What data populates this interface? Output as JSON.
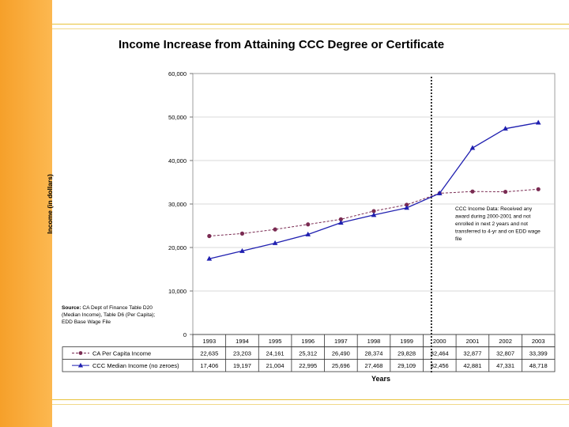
{
  "chart_data": {
    "type": "line",
    "title": "Income Increase from Attaining CCC Degree or Certificate",
    "ylabel": "Income (in dollars)",
    "xlabel": "Years",
    "ylim": [
      0,
      60000
    ],
    "y_ticks": [
      "0",
      "10,000",
      "20,000",
      "30,000",
      "40,000",
      "50,000",
      "60,000"
    ],
    "categories": [
      "1993",
      "1994",
      "1995",
      "1996",
      "1997",
      "1998",
      "1999",
      "2000",
      "2001",
      "2002",
      "2003"
    ],
    "series": [
      {
        "name": "CA Per Capita Income",
        "color": "#7a2b52",
        "style": "dashed",
        "marker": "circle",
        "values": [
          22635,
          23203,
          24161,
          25312,
          26490,
          28374,
          29828,
          32464,
          32877,
          32807,
          33399
        ],
        "labels": [
          "22,635",
          "23,203",
          "24,161",
          "25,312",
          "26,490",
          "28,374",
          "29,828",
          "32,464",
          "32,877",
          "32,807",
          "33,399"
        ]
      },
      {
        "name": "CCC Median Income (no zeroes)",
        "color": "#1f1fb0",
        "style": "solid",
        "marker": "triangle",
        "values": [
          17406,
          19197,
          21004,
          22995,
          25696,
          27468,
          29109,
          32456,
          42881,
          47331,
          48718
        ],
        "labels": [
          "17,406",
          "19,197",
          "21,004",
          "22,995",
          "25,696",
          "27,468",
          "29,109",
          "32,456",
          "42,881",
          "47,331",
          "48,718"
        ]
      }
    ],
    "reference_line_category": "2000",
    "grid": true,
    "annotations": {
      "ccc_note": [
        "CCC Income Data: Received any",
        "award during 2000-2001 and not",
        "enrolled in next 2 years and not",
        "transferred to 4-yr and on EDD wage",
        "file"
      ],
      "source": [
        "Source: CA Dept of Finance Table D20",
        "(Median Income), Table D6 (Per Capita);",
        "EDD Base Wage File"
      ]
    }
  },
  "colors": {
    "sidebar": "#f6a02a",
    "rule": "#e8c23a",
    "grid": "#cccccc"
  }
}
